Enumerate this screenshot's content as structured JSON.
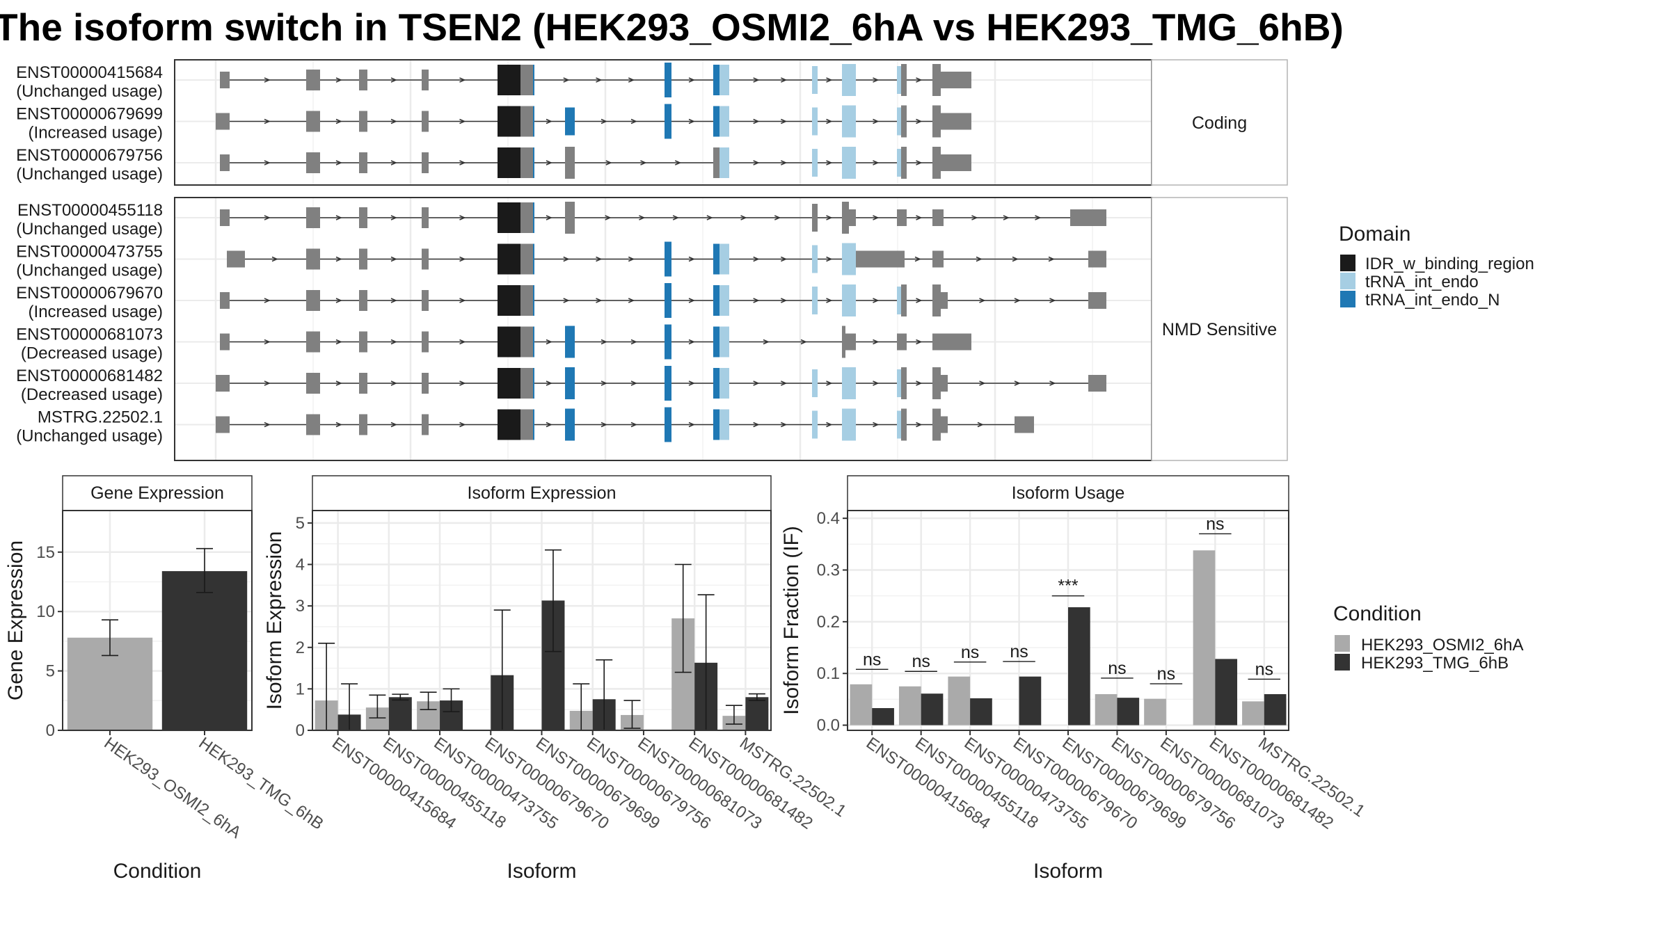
{
  "title": "The isoform switch in TSEN2 (HEK293_OSMI2_6hA vs HEK293_TMG_6hB)",
  "colors": {
    "idr": "#1a1a1a",
    "trna_int_endo": "#a6cee3",
    "trna_int_endo_N": "#1f78b4",
    "exon": "#808080",
    "cond_a": "#aaaaaa",
    "cond_b": "#333333",
    "grid": "#ebebeb"
  },
  "structure": {
    "facets": [
      {
        "label": "Coding",
        "rows": [
          {
            "id": "ENST00000415684",
            "usage": "(Unchanged usage)"
          },
          {
            "id": "ENST00000679699",
            "usage": "(Increased usage)"
          },
          {
            "id": "ENST00000679756",
            "usage": "(Unchanged usage)"
          }
        ]
      },
      {
        "label": "NMD Sensitive",
        "rows": [
          {
            "id": "ENST00000455118",
            "usage": "(Unchanged usage)"
          },
          {
            "id": "ENST00000473755",
            "usage": "(Unchanged usage)"
          },
          {
            "id": "ENST00000679670",
            "usage": "(Increased usage)"
          },
          {
            "id": "ENST00000681073",
            "usage": "(Decreased usage)"
          },
          {
            "id": "ENST00000681482",
            "usage": "(Decreased usage)"
          },
          {
            "id": "MSTRG.22502.1",
            "usage": "(Unchanged usage)"
          }
        ]
      }
    ]
  },
  "legend_domain": {
    "title": "Domain",
    "items": [
      {
        "label": "IDR_w_binding_region",
        "color": "#1a1a1a"
      },
      {
        "label": "tRNA_int_endo",
        "color": "#a6cee3"
      },
      {
        "label": "tRNA_int_endo_N",
        "color": "#1f78b4"
      }
    ]
  },
  "legend_condition": {
    "title": "Condition",
    "items": [
      {
        "label": "HEK293_OSMI2_6hA",
        "color": "#aaaaaa"
      },
      {
        "label": "HEK293_TMG_6hB",
        "color": "#333333"
      }
    ]
  },
  "chart_data": [
    {
      "type": "bar",
      "title": "Gene Expression",
      "xlabel": "Condition",
      "ylabel": "Gene Expression",
      "categories": [
        "HEK293_OSMI2_6hA",
        "HEK293_TMG_6hB"
      ],
      "values": [
        7.8,
        13.4
      ],
      "err_low": [
        6.3,
        11.6
      ],
      "err_high": [
        9.3,
        15.3
      ],
      "ylim": [
        0,
        18.5
      ],
      "yticks": [
        0,
        5,
        10,
        15
      ]
    },
    {
      "type": "bar",
      "title": "Isoform Expression",
      "xlabel": "Isoform",
      "ylabel": "Isoform Expression",
      "categories": [
        "ENST00000415684",
        "ENST00000455118",
        "ENST00000473755",
        "ENST00000679670",
        "ENST00000679699",
        "ENST00000679756",
        "ENST00000681073",
        "ENST00000681482",
        "MSTRG.22502.1"
      ],
      "series": [
        {
          "name": "HEK293_OSMI2_6hA",
          "values": [
            0.72,
            0.55,
            0.7,
            0.0,
            0.0,
            0.47,
            0.37,
            2.7,
            0.35
          ],
          "err_low": [
            0.0,
            0.3,
            0.5,
            0.0,
            0.0,
            0.0,
            0.05,
            1.4,
            0.15
          ],
          "err_high": [
            2.1,
            0.85,
            0.92,
            0.0,
            0.0,
            1.12,
            0.72,
            4.0,
            0.6
          ]
        },
        {
          "name": "HEK293_TMG_6hB",
          "values": [
            0.38,
            0.8,
            0.72,
            1.33,
            3.13,
            0.75,
            0.0,
            1.63,
            0.8
          ],
          "err_low": [
            0.0,
            0.73,
            0.45,
            0.0,
            1.9,
            0.0,
            0.0,
            0.0,
            0.72
          ],
          "err_high": [
            1.12,
            0.87,
            1.0,
            2.9,
            4.35,
            1.7,
            0.0,
            3.27,
            0.88
          ]
        }
      ],
      "ylim": [
        0,
        5.3
      ],
      "yticks": [
        0,
        1,
        2,
        3,
        4,
        5
      ]
    },
    {
      "type": "bar",
      "title": "Isoform Usage",
      "xlabel": "Isoform",
      "ylabel": "Isoform Fraction (IF)",
      "categories": [
        "ENST00000415684",
        "ENST00000455118",
        "ENST00000473755",
        "ENST00000679670",
        "ENST00000679699",
        "ENST00000679756",
        "ENST00000681073",
        "ENST00000681482",
        "MSTRG.22502.1"
      ],
      "series": [
        {
          "name": "HEK293_OSMI2_6hA",
          "values": [
            0.079,
            0.075,
            0.094,
            0.0,
            0.0,
            0.06,
            0.051,
            0.338,
            0.046
          ]
        },
        {
          "name": "HEK293_TMG_6hB",
          "values": [
            0.033,
            0.061,
            0.052,
            0.094,
            0.228,
            0.053,
            0.0,
            0.128,
            0.06
          ]
        }
      ],
      "significance": [
        "ns",
        "ns",
        "ns",
        "ns",
        "***",
        "ns",
        "ns",
        "ns",
        "ns"
      ],
      "sig_heights": [
        0.108,
        0.104,
        0.122,
        0.123,
        0.25,
        0.091,
        0.08,
        0.37,
        0.089
      ],
      "ylim": [
        -0.01,
        0.415
      ],
      "yticks": [
        0.0,
        0.1,
        0.2,
        0.3,
        0.4
      ]
    }
  ]
}
